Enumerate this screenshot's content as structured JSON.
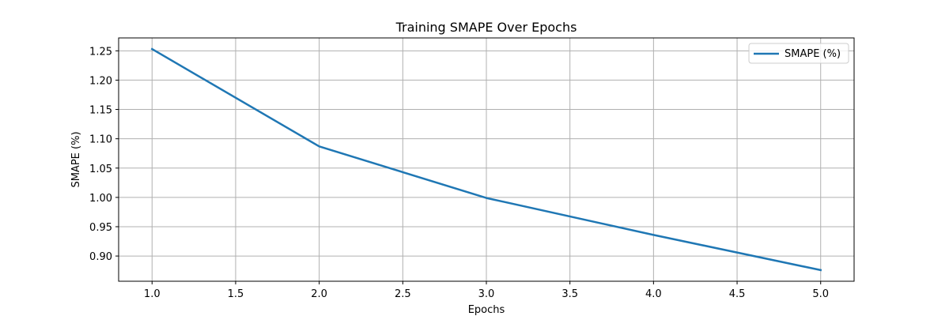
{
  "chart_data": {
    "type": "line",
    "title": "Training SMAPE Over Epochs",
    "xlabel": "Epochs",
    "ylabel": "SMAPE (%)",
    "x": [
      1,
      2,
      3,
      4,
      5
    ],
    "series": [
      {
        "name": "SMAPE (%)",
        "values": [
          1.253,
          1.087,
          0.999,
          0.936,
          0.876
        ],
        "color": "#1f77b4"
      }
    ],
    "xlim": [
      0.8,
      5.2
    ],
    "ylim": [
      0.857,
      1.272
    ],
    "x_ticks": [
      1.0,
      1.5,
      2.0,
      2.5,
      3.0,
      3.5,
      4.0,
      4.5,
      5.0
    ],
    "x_tick_labels": [
      "1.0",
      "1.5",
      "2.0",
      "2.5",
      "3.0",
      "3.5",
      "4.0",
      "4.5",
      "5.0"
    ],
    "y_ticks": [
      0.9,
      0.95,
      1.0,
      1.05,
      1.1,
      1.15,
      1.2,
      1.25
    ],
    "y_tick_labels": [
      "0.90",
      "0.95",
      "1.00",
      "1.05",
      "1.10",
      "1.15",
      "1.20",
      "1.25"
    ],
    "grid": true,
    "legend_position": "top-right"
  }
}
